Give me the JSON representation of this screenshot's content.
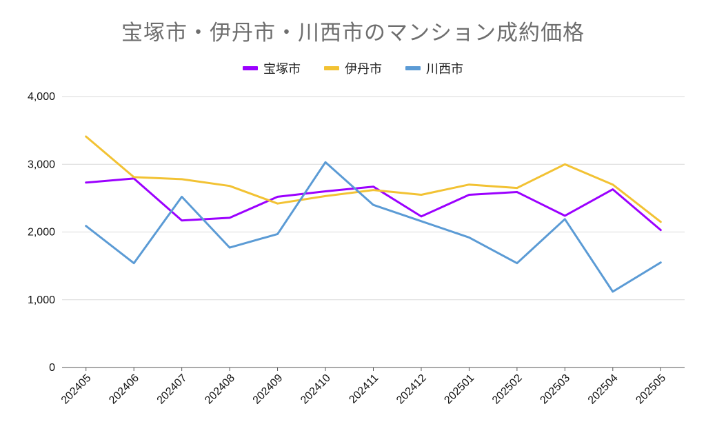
{
  "chart_data": {
    "type": "line",
    "title": "宝塚市・伊丹市・川西市のマンション成約価格",
    "xlabel": "",
    "ylabel": "",
    "ylim": [
      0,
      4000
    ],
    "yticks": [
      0,
      1000,
      2000,
      3000,
      4000
    ],
    "ytick_labels": [
      "0",
      "1,000",
      "2,000",
      "3,000",
      "4,000"
    ],
    "grid": true,
    "legend_position": "top-center",
    "categories": [
      "202405",
      "202406",
      "202407",
      "202408",
      "202409",
      "202410",
      "202411",
      "202412",
      "202501",
      "202502",
      "202503",
      "202504",
      "202505"
    ],
    "series": [
      {
        "name": "宝塚市",
        "color": "#9b00ff",
        "values": [
          2730,
          2790,
          2170,
          2210,
          2520,
          2600,
          2670,
          2230,
          2550,
          2590,
          2240,
          2630,
          2030
        ]
      },
      {
        "name": "伊丹市",
        "color": "#f2c233",
        "values": [
          3410,
          2810,
          2780,
          2680,
          2420,
          2530,
          2620,
          2550,
          2700,
          2650,
          3000,
          2700,
          2150
        ]
      },
      {
        "name": "川西市",
        "color": "#5b9bd5",
        "values": [
          2090,
          1540,
          2520,
          1770,
          1970,
          3030,
          2400,
          2160,
          1920,
          1540,
          2190,
          1120,
          1550
        ]
      }
    ]
  }
}
